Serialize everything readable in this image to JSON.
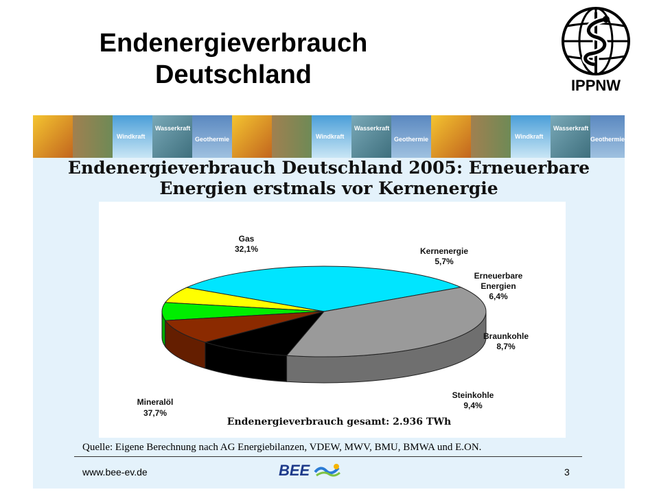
{
  "slide": {
    "title_line1": "Endenergieverbrauch",
    "title_line2": "Deutschland",
    "logo_text": "IPPNW"
  },
  "banner": {
    "tiles": [
      "Wasserkraft",
      "Windkraft",
      "Geothermie"
    ]
  },
  "panel": {
    "heading_line1": "Endenergieverbrauch Deutschland 2005: Erneuerbare",
    "heading_line2": "Energien erstmals vor Kernenergie"
  },
  "chart_data": {
    "type": "pie",
    "title": "Endenergieverbrauch Deutschland 2005: Erneuerbare Energien erstmals vor Kernenergie",
    "total_label": "Endenergieverbrauch gesamt: 2.936 TWh",
    "slices": [
      {
        "name": "Gas",
        "label": "32,1%",
        "value": 32.1,
        "color": "#00e5ff"
      },
      {
        "name": "Kernenergie",
        "label": "5,7%",
        "value": 5.7,
        "color": "#ffff00"
      },
      {
        "name": "Erneuerbare Energien",
        "label": "6,4%",
        "value": 6.4,
        "color": "#00ee00"
      },
      {
        "name": "Braunkohle",
        "label": "8,7%",
        "value": 8.7,
        "color": "#8b2a00"
      },
      {
        "name": "Steinkohle",
        "label": "9,4%",
        "value": 9.4,
        "color": "#000000"
      },
      {
        "name": "Mineralöl",
        "label": "37,7%",
        "value": 37.7,
        "color": "#9a9a9a"
      }
    ]
  },
  "footer": {
    "source": "Quelle: Eigene Berechnung nach AG Energiebilanzen, VDEW, MWV, BMU, BMWA und E.ON.",
    "url": "www.bee-ev.de",
    "brand": "BEE",
    "page": "3"
  },
  "colors": {
    "panel_background": "#e4f2fb",
    "brand_blue": "#1e3a8a"
  }
}
